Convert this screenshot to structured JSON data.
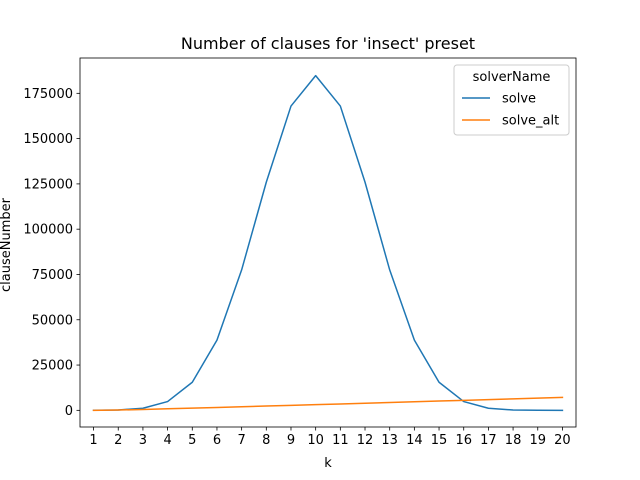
{
  "chart_data": {
    "type": "line",
    "title": "Number of clauses for 'insect' preset",
    "xlabel": "k",
    "ylabel": "clauseNumber",
    "x": [
      1,
      2,
      3,
      4,
      5,
      6,
      7,
      8,
      9,
      10,
      11,
      12,
      13,
      14,
      15,
      16,
      17,
      18,
      19,
      20
    ],
    "xticks": [
      "1",
      "2",
      "3",
      "4",
      "5",
      "6",
      "7",
      "8",
      "9",
      "10",
      "11",
      "12",
      "13",
      "14",
      "15",
      "16",
      "17",
      "18",
      "19",
      "20"
    ],
    "xlim": [
      0.45,
      20.55
    ],
    "ylim": [
      -9200,
      194500
    ],
    "yticks": [
      0,
      25000,
      50000,
      75000,
      100000,
      125000,
      150000,
      175000
    ],
    "ytick_labels": [
      "0",
      "25000",
      "50000",
      "75000",
      "100000",
      "125000",
      "150000",
      "175000"
    ],
    "grid": false,
    "legend": {
      "title": "solverName",
      "placement": "top-right"
    },
    "series": [
      {
        "name": "solve",
        "color": "#1f77b4",
        "values": [
          20,
          190,
          1140,
          4850,
          15500,
          38760,
          77520,
          125970,
          167960,
          184760,
          167960,
          125970,
          77520,
          38760,
          15500,
          4850,
          1140,
          190,
          20,
          0
        ]
      },
      {
        "name": "solve_alt",
        "color": "#ff7f0e",
        "values": [
          0,
          170,
          480,
          850,
          1220,
          1600,
          1980,
          2360,
          2750,
          3140,
          3530,
          3920,
          4320,
          4720,
          5120,
          5520,
          5930,
          6340,
          6750,
          7160
        ]
      }
    ]
  }
}
